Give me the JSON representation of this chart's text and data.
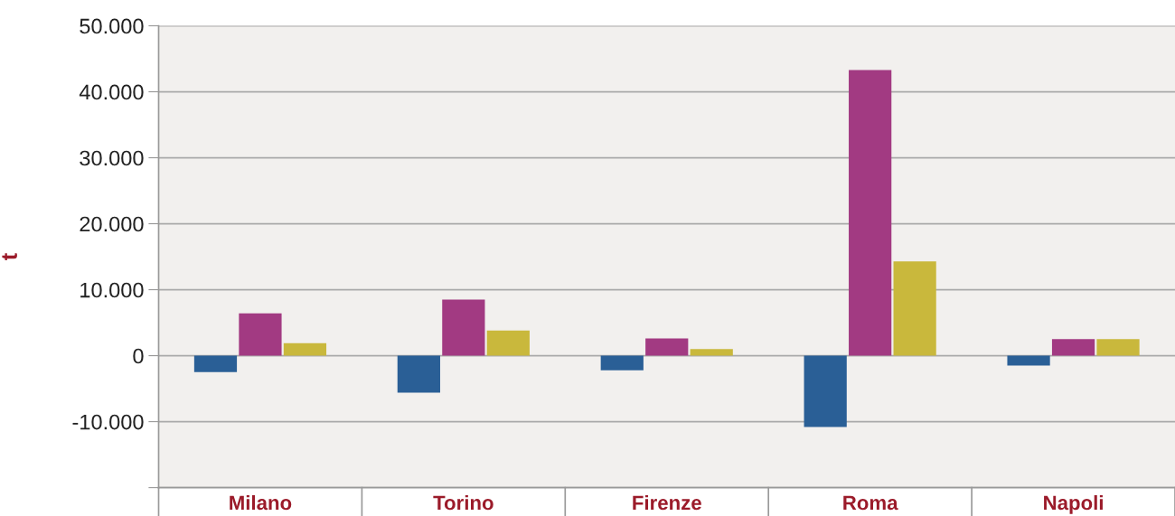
{
  "chart_data": {
    "type": "bar",
    "ylabel": "t",
    "categories": [
      "Milano",
      "Torino",
      "Firenze",
      "Roma",
      "Napoli"
    ],
    "series": [
      {
        "color": "#2a5f96",
        "values": [
          -2500,
          -5600,
          -2200,
          -10800,
          -1500
        ]
      },
      {
        "color": "#a23a82",
        "values": [
          6400,
          8500,
          2600,
          43300,
          2500
        ]
      },
      {
        "color": "#c9b83c",
        "values": [
          1900,
          3800,
          1000,
          14300,
          2500
        ]
      }
    ],
    "ylim": [
      -20000,
      50000
    ],
    "yticks": [
      {
        "value": -20000,
        "label": null
      },
      {
        "value": -10000,
        "label": "-10.000"
      },
      {
        "value": 0,
        "label": "0"
      },
      {
        "value": 10000,
        "label": "10.000"
      },
      {
        "value": 20000,
        "label": "20.000"
      },
      {
        "value": 30000,
        "label": "30.000"
      },
      {
        "value": 40000,
        "label": "40.000"
      },
      {
        "value": 50000,
        "label": "50.000"
      }
    ],
    "grid": "y",
    "legend": false
  }
}
